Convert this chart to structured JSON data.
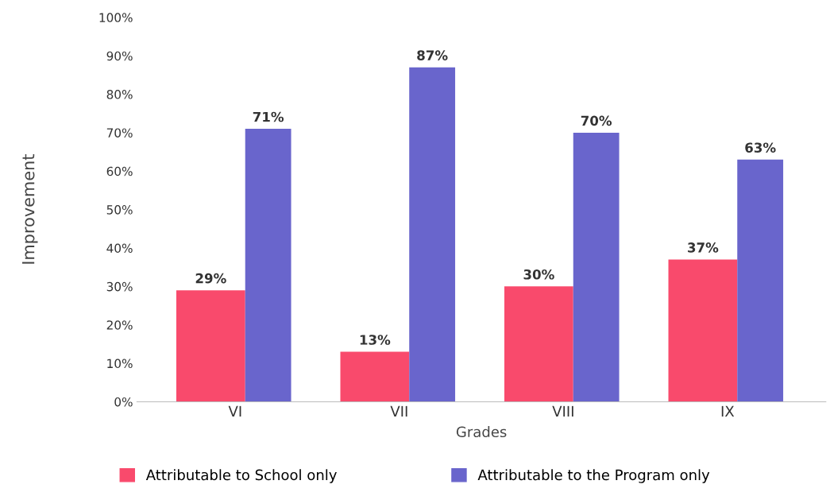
{
  "chart_data": {
    "type": "bar",
    "xlabel": "Grades",
    "ylabel": "Improvement",
    "categories": [
      "VI",
      "VII",
      "VIII",
      "IX"
    ],
    "series": [
      {
        "name": "Attributable to School only",
        "color": "#f94a6c",
        "values": [
          29,
          13,
          30,
          37
        ],
        "value_labels": [
          "29%",
          "13%",
          "30%",
          "37%"
        ]
      },
      {
        "name": "Attributable to the Program only",
        "color": "#6965cc",
        "values": [
          71,
          87,
          70,
          63
        ],
        "value_labels": [
          "71%",
          "87%",
          "70%",
          "63%"
        ]
      }
    ],
    "ylim": [
      0,
      100
    ],
    "yticks": [
      {
        "value": 0,
        "label": "0%"
      },
      {
        "value": 10,
        "label": "10%"
      },
      {
        "value": 20,
        "label": "20%"
      },
      {
        "value": 30,
        "label": "30%"
      },
      {
        "value": 40,
        "label": "40%"
      },
      {
        "value": 50,
        "label": "50%"
      },
      {
        "value": 60,
        "label": "60%"
      },
      {
        "value": 70,
        "label": "70%"
      },
      {
        "value": 80,
        "label": "80%"
      },
      {
        "value": 90,
        "label": "90%"
      },
      {
        "value": 100,
        "label": "100%"
      }
    ],
    "grid": false,
    "legend": "bottom"
  }
}
